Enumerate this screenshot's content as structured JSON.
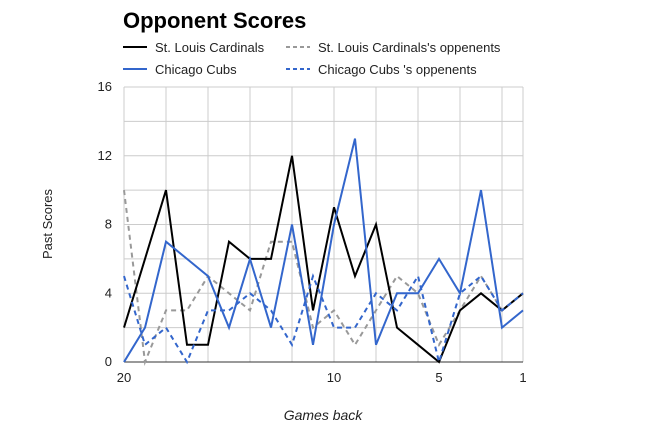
{
  "chart_data": {
    "type": "line",
    "title": "Opponent Scores",
    "xlabel": "Games back",
    "ylabel": "Past Scores",
    "xlim": [
      20,
      1
    ],
    "ylim": [
      0,
      16
    ],
    "x_ticks": [
      20,
      10,
      5,
      1
    ],
    "y_ticks": [
      0,
      4,
      8,
      12,
      16
    ],
    "grid": true,
    "legend": "top",
    "x": [
      20,
      19,
      18,
      17,
      16,
      15,
      14,
      13,
      12,
      11,
      10,
      9,
      8,
      7,
      6,
      5,
      4,
      3,
      2,
      1
    ],
    "series": [
      {
        "name": "St. Louis Cardinals",
        "color": "#000000",
        "dash": "solid",
        "values": [
          2,
          6,
          10,
          1,
          1,
          7,
          6,
          6,
          12,
          3,
          9,
          5,
          8,
          2,
          1,
          0,
          3,
          4,
          3,
          4
        ]
      },
      {
        "name": "St. Louis Cardinals's oppenents",
        "color": "#999999",
        "dash": "dashed",
        "values": [
          10,
          0,
          3,
          3,
          5,
          4,
          3,
          7,
          7,
          2,
          3,
          1,
          3,
          5,
          4,
          1,
          3,
          5,
          3,
          4
        ]
      },
      {
        "name": "Chicago Cubs",
        "color": "#3366cc",
        "dash": "solid",
        "values": [
          0,
          2,
          7,
          6,
          5,
          2,
          6,
          2,
          8,
          1,
          8,
          13,
          1,
          4,
          4,
          6,
          4,
          10,
          2,
          3
        ]
      },
      {
        "name": "Chicago Cubs 's oppenents",
        "color": "#3366cc",
        "dash": "dashed",
        "values": [
          5,
          1,
          2,
          0,
          3,
          3,
          4,
          3,
          1,
          5,
          2,
          2,
          4,
          3,
          5,
          0,
          4,
          5,
          3,
          4
        ]
      }
    ]
  }
}
